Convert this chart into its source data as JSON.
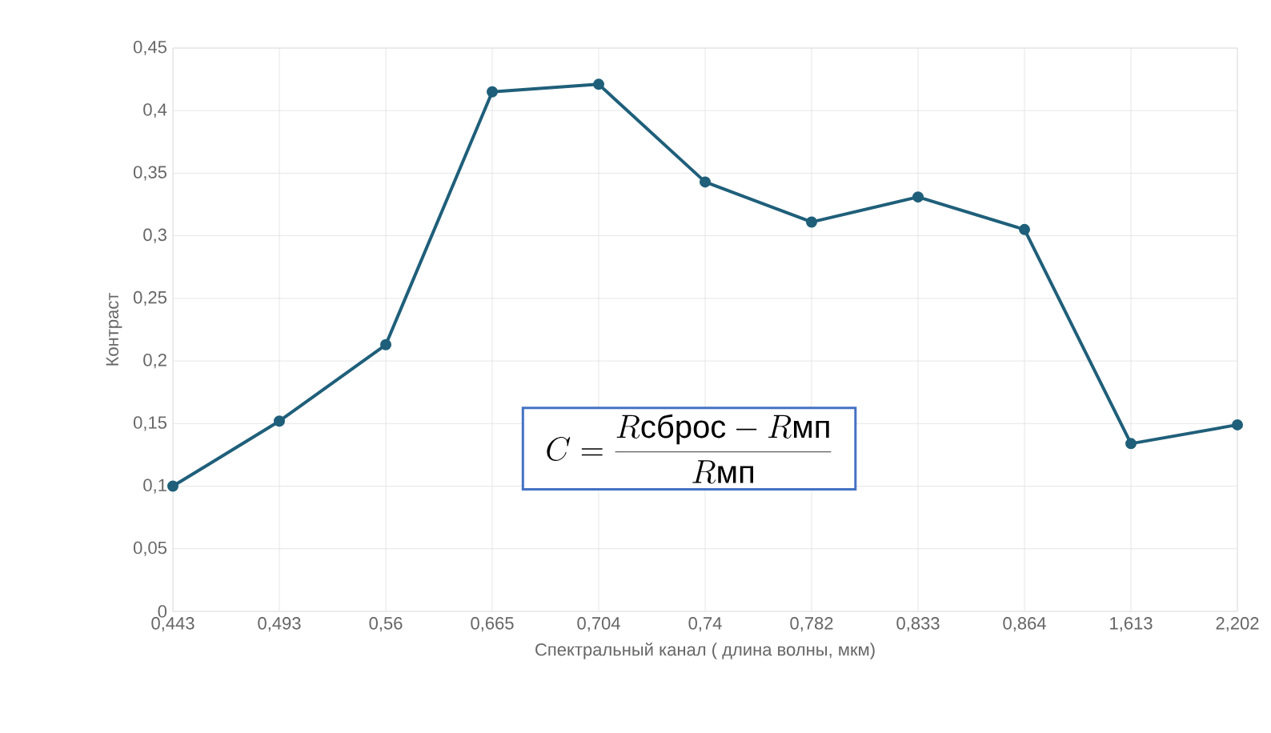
{
  "chart_data": {
    "type": "line",
    "xlabel": "Спектральный канал ( длина волны, мкм)",
    "ylabel": "Контраст",
    "categories": [
      "0,443",
      "0,493",
      "0,56",
      "0,665",
      "0,704",
      "0,74",
      "0,782",
      "0,833",
      "0,864",
      "1,613",
      "2,202"
    ],
    "values": [
      0.1,
      0.152,
      0.213,
      0.415,
      0.421,
      0.343,
      0.311,
      0.331,
      0.305,
      0.134,
      0.149
    ],
    "color": "#1f5f7a",
    "marker": "circle",
    "grid": true,
    "ylim": [
      0,
      0.45
    ],
    "yticks": [
      {
        "value": 0,
        "label": "0"
      },
      {
        "value": 0.05,
        "label": "0,05"
      },
      {
        "value": 0.1,
        "label": "0,1"
      },
      {
        "value": 0.15,
        "label": "0,15"
      },
      {
        "value": 0.2,
        "label": "0,2"
      },
      {
        "value": 0.25,
        "label": "0,25"
      },
      {
        "value": 0.3,
        "label": "0,3"
      },
      {
        "value": 0.35,
        "label": "0,35"
      },
      {
        "value": 0.4,
        "label": "0,4"
      },
      {
        "value": 0.45,
        "label": "0,45"
      }
    ],
    "annotations": [
      "C = \\frac{R\\mbox{сброс} - R\\mbox{мп}}{R\\mbox{мп}}"
    ]
  }
}
